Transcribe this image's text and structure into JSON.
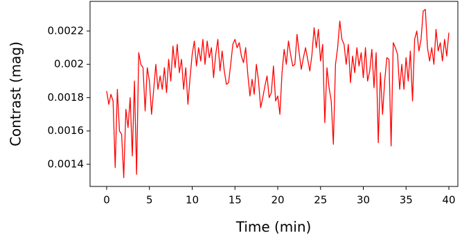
{
  "chart_data": {
    "type": "line",
    "xlabel": "Time (min)",
    "ylabel": "Contrast (mag)",
    "xlim": [
      -1.94,
      41.05
    ],
    "ylim": [
      0.001267,
      0.002378
    ],
    "xticks": [
      0,
      5,
      10,
      15,
      20,
      25,
      30,
      35,
      40
    ],
    "yticks": [
      0.0014,
      0.0016,
      0.0018,
      0.002,
      0.0022
    ],
    "x": [
      0,
      0.25,
      0.5,
      0.75,
      1,
      1.25,
      1.5,
      1.75,
      2,
      2.25,
      2.5,
      2.75,
      3,
      3.25,
      3.5,
      3.75,
      4,
      4.25,
      4.5,
      4.75,
      5,
      5.25,
      5.5,
      5.75,
      6,
      6.25,
      6.5,
      6.75,
      7,
      7.25,
      7.5,
      7.75,
      8,
      8.25,
      8.5,
      8.75,
      9,
      9.25,
      9.5,
      9.75,
      10,
      10.25,
      10.5,
      10.75,
      11,
      11.25,
      11.5,
      11.75,
      12,
      12.25,
      12.5,
      12.75,
      13,
      13.25,
      13.5,
      13.75,
      14,
      14.25,
      14.5,
      14.75,
      15,
      15.25,
      15.5,
      15.75,
      16,
      16.25,
      16.5,
      16.75,
      17,
      17.25,
      17.5,
      17.75,
      18,
      18.25,
      18.5,
      18.75,
      19,
      19.25,
      19.5,
      19.75,
      20,
      20.25,
      20.5,
      20.75,
      21,
      21.25,
      21.5,
      21.75,
      22,
      22.25,
      22.5,
      22.75,
      23,
      23.25,
      23.5,
      23.75,
      24,
      24.25,
      24.5,
      24.75,
      25,
      25.25,
      25.5,
      25.75,
      26,
      26.25,
      26.5,
      26.75,
      27,
      27.25,
      27.5,
      27.75,
      28,
      28.25,
      28.5,
      28.75,
      29,
      29.25,
      29.5,
      29.75,
      30,
      30.25,
      30.5,
      30.75,
      31,
      31.25,
      31.5,
      31.75,
      32,
      32.25,
      32.5,
      32.75,
      33,
      33.25,
      33.5,
      33.75,
      34,
      34.25,
      34.5,
      34.75,
      35,
      35.25,
      35.5,
      35.75,
      36,
      36.25,
      36.5,
      36.75,
      37,
      37.25,
      37.5,
      37.75,
      38,
      38.25,
      38.5,
      38.75,
      39,
      39.25,
      39.5,
      39.75,
      40
    ],
    "series": [
      {
        "name": "contrast",
        "color": "#ff0000",
        "values": [
          0.00184,
          0.00176,
          0.00182,
          0.00178,
          0.00138,
          0.00185,
          0.0016,
          0.00158,
          0.00132,
          0.00173,
          0.00162,
          0.0018,
          0.00145,
          0.0019,
          0.00134,
          0.00207,
          0.002,
          0.00198,
          0.00172,
          0.00198,
          0.0019,
          0.0017,
          0.00185,
          0.002,
          0.00185,
          0.00193,
          0.00185,
          0.00198,
          0.00183,
          0.00203,
          0.0019,
          0.00211,
          0.00198,
          0.00212,
          0.00195,
          0.00203,
          0.00185,
          0.00198,
          0.00176,
          0.00192,
          0.00206,
          0.00214,
          0.00199,
          0.0021,
          0.00202,
          0.00215,
          0.002,
          0.00214,
          0.00204,
          0.0021,
          0.00192,
          0.00206,
          0.00215,
          0.00196,
          0.00208,
          0.00196,
          0.00188,
          0.00189,
          0.002,
          0.00212,
          0.00215,
          0.0021,
          0.00213,
          0.00205,
          0.00201,
          0.0021,
          0.00194,
          0.00181,
          0.00191,
          0.00182,
          0.002,
          0.0019,
          0.00174,
          0.0018,
          0.00187,
          0.00193,
          0.0018,
          0.00183,
          0.00199,
          0.00178,
          0.00181,
          0.0017,
          0.00195,
          0.00209,
          0.002,
          0.00214,
          0.00206,
          0.00199,
          0.002,
          0.00218,
          0.00207,
          0.00197,
          0.00204,
          0.0021,
          0.00203,
          0.00196,
          0.00206,
          0.00222,
          0.0021,
          0.00221,
          0.00202,
          0.00212,
          0.00165,
          0.00198,
          0.00186,
          0.00178,
          0.00152,
          0.002,
          0.0021,
          0.00226,
          0.00215,
          0.00212,
          0.002,
          0.00212,
          0.00189,
          0.00205,
          0.00195,
          0.0021,
          0.00199,
          0.00207,
          0.00192,
          0.0021,
          0.0019,
          0.00196,
          0.00209,
          0.00186,
          0.00207,
          0.00153,
          0.00195,
          0.0017,
          0.0019,
          0.00204,
          0.00203,
          0.00151,
          0.00213,
          0.0021,
          0.00206,
          0.00185,
          0.002,
          0.00185,
          0.00204,
          0.0019,
          0.00208,
          0.00178,
          0.00215,
          0.0022,
          0.00208,
          0.00215,
          0.00232,
          0.00233,
          0.0021,
          0.00202,
          0.0021,
          0.002,
          0.00221,
          0.00208,
          0.00213,
          0.00202,
          0.00215,
          0.00205,
          0.00219
        ]
      }
    ]
  }
}
